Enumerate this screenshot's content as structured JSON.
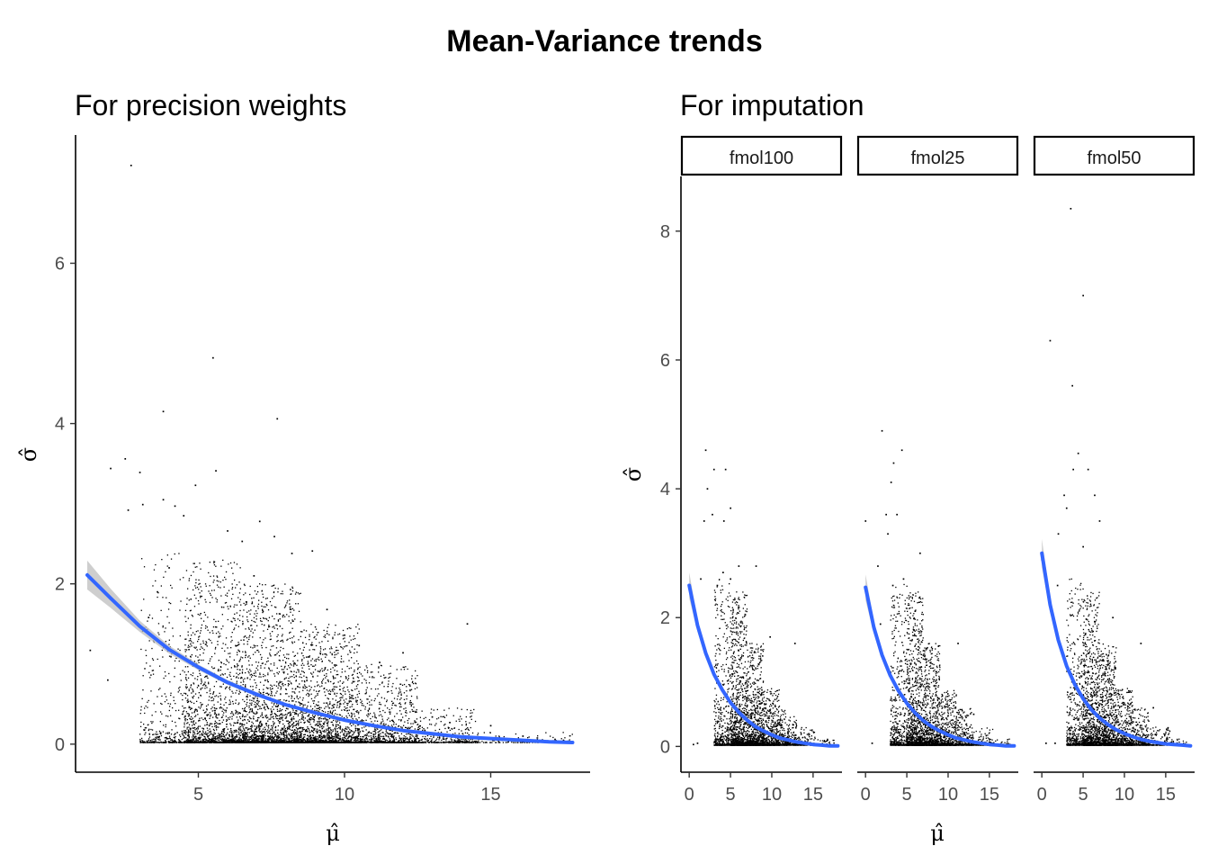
{
  "title": "Mean-Variance trends",
  "chart_data": [
    {
      "type": "scatter",
      "subtitle": "For precision weights",
      "xlabel": "μ̂",
      "ylabel": "σ̂",
      "xlim": [
        0.8,
        18.4
      ],
      "ylim": [
        -0.35,
        7.6
      ],
      "xticks": [
        5,
        10,
        15
      ],
      "yticks": [
        0,
        2,
        4,
        6
      ],
      "grid": false,
      "x_mode": 6.5,
      "x_spread": 1.8,
      "series": [
        {
          "color": "#000000",
          "points": [
            [
              2.7,
              7.22
            ],
            [
              5.5,
              4.82
            ],
            [
              3.8,
              4.15
            ],
            [
              7.7,
              4.06
            ],
            [
              1.3,
              1.17
            ],
            [
              1.9,
              0.8
            ],
            [
              2.0,
              3.44
            ],
            [
              2.5,
              3.56
            ],
            [
              2.6,
              2.92
            ],
            [
              3.0,
              3.39
            ],
            [
              3.1,
              2.99
            ],
            [
              3.8,
              3.05
            ],
            [
              4.2,
              2.97
            ],
            [
              4.9,
              3.23
            ],
            [
              5.6,
              3.41
            ],
            [
              4.5,
              2.85
            ],
            [
              6.0,
              2.66
            ],
            [
              6.5,
              2.53
            ],
            [
              7.1,
              2.78
            ],
            [
              7.6,
              2.59
            ],
            [
              8.2,
              2.38
            ],
            [
              8.9,
              2.41
            ],
            [
              14.2,
              1.5
            ],
            [
              12.0,
              1.14
            ],
            [
              10.5,
              1.23
            ],
            [
              11.2,
              1.02
            ],
            [
              13.0,
              0.34
            ],
            [
              13.6,
              0.27
            ],
            [
              15.0,
              0.23
            ],
            [
              16.1,
              0.1
            ],
            [
              17.2,
              0.06
            ],
            [
              3.3,
              1.58
            ],
            [
              3.6,
              1.9
            ],
            [
              4.0,
              2.2
            ],
            [
              6.9,
              2.1
            ],
            [
              9.4,
              1.68
            ],
            [
              10.0,
              1.36
            ]
          ]
        }
      ],
      "density": [
        {
          "x_from": 3.0,
          "x_to": 4.5,
          "count": 400,
          "y_max": 2.4
        },
        {
          "x_from": 4.5,
          "x_to": 6.5,
          "count": 1500,
          "y_max": 2.3
        },
        {
          "x_from": 6.5,
          "x_to": 8.5,
          "count": 2000,
          "y_max": 2.0
        },
        {
          "x_from": 8.5,
          "x_to": 10.5,
          "count": 1600,
          "y_max": 1.5
        },
        {
          "x_from": 10.5,
          "x_to": 12.5,
          "count": 900,
          "y_max": 1.0
        },
        {
          "x_from": 12.5,
          "x_to": 14.5,
          "count": 350,
          "y_max": 0.45
        },
        {
          "x_from": 14.5,
          "x_to": 17.8,
          "count": 120,
          "y_max": 0.15
        }
      ],
      "trend": {
        "color": "#3366ff",
        "band_color": "#bdbdbd",
        "x": [
          1.2,
          2.0,
          3.0,
          4.0,
          5.0,
          6.0,
          7.0,
          8.0,
          9.0,
          10.0,
          11.0,
          12.0,
          13.0,
          14.0,
          15.0,
          16.0,
          17.0,
          17.8
        ],
        "y": [
          2.11,
          1.82,
          1.47,
          1.18,
          0.96,
          0.77,
          0.62,
          0.49,
          0.39,
          0.3,
          0.23,
          0.17,
          0.13,
          0.09,
          0.07,
          0.05,
          0.03,
          0.02
        ],
        "se": [
          0.18,
          0.12,
          0.07,
          0.05,
          0.035,
          0.03,
          0.025,
          0.02,
          0.02,
          0.015,
          0.015,
          0.015,
          0.015,
          0.015,
          0.015,
          0.015,
          0.02,
          0.02
        ]
      }
    },
    {
      "type": "scatter",
      "subtitle": "For imputation",
      "xlabel": "μ̂",
      "ylabel": "σ̂",
      "xlim": [
        -1.0,
        18.5
      ],
      "ylim": [
        -0.4,
        8.85
      ],
      "xticks": [
        0,
        5,
        10,
        15
      ],
      "yticks": [
        0,
        2,
        4,
        6,
        8
      ],
      "grid": false,
      "facets": [
        {
          "label": "fmol100",
          "outliers": [
            [
              2.0,
              4.6
            ],
            [
              3.0,
              4.3
            ],
            [
              4.4,
              4.3
            ],
            [
              2.2,
              4.0
            ],
            [
              1.8,
              3.5
            ],
            [
              2.8,
              3.6
            ],
            [
              5.0,
              3.7
            ],
            [
              4.2,
              3.5
            ],
            [
              6.0,
              2.8
            ],
            [
              1.4,
              2.6
            ],
            [
              3.4,
              2.5
            ],
            [
              4.1,
              2.7
            ],
            [
              5.0,
              2.6
            ],
            [
              8.1,
              2.8
            ],
            [
              9.8,
              1.7
            ],
            [
              12.8,
              1.6
            ],
            [
              0.5,
              0.03
            ],
            [
              1.0,
              0.05
            ]
          ],
          "trend": {
            "x": [
              0,
              1,
              2,
              3,
              4,
              5,
              6,
              7,
              8,
              9,
              10,
              11,
              12,
              13,
              14,
              15,
              16,
              17,
              18
            ],
            "y": [
              2.5,
              1.88,
              1.45,
              1.12,
              0.88,
              0.68,
              0.53,
              0.41,
              0.31,
              0.24,
              0.18,
              0.13,
              0.1,
              0.07,
              0.05,
              0.03,
              0.02,
              0.01,
              0.01
            ],
            "se": [
              0.2,
              0.1,
              0.05,
              0.03,
              0.02,
              0.02,
              0.02,
              0.02,
              0.015,
              0.015,
              0.015,
              0.015,
              0.015,
              0.015,
              0.015,
              0.015,
              0.015,
              0.015,
              0.015
            ]
          }
        },
        {
          "label": "fmol25",
          "outliers": [
            [
              2.0,
              4.9
            ],
            [
              4.4,
              4.6
            ],
            [
              3.1,
              4.1
            ],
            [
              3.4,
              4.4
            ],
            [
              2.5,
              3.6
            ],
            [
              3.8,
              3.6
            ],
            [
              0.0,
              3.5
            ],
            [
              2.7,
              3.3
            ],
            [
              6.6,
              3.0
            ],
            [
              1.5,
              2.8
            ],
            [
              3.3,
              2.5
            ],
            [
              4.6,
              2.6
            ],
            [
              6.0,
              2.1
            ],
            [
              1.8,
              1.9
            ],
            [
              11.2,
              1.6
            ],
            [
              13.1,
              0.5
            ],
            [
              0.8,
              0.05
            ],
            [
              15.5,
              0.05
            ]
          ],
          "trend": {
            "x": [
              0,
              1,
              2,
              3,
              4,
              5,
              6,
              7,
              8,
              9,
              10,
              11,
              12,
              13,
              14,
              15,
              16,
              17,
              18
            ],
            "y": [
              2.47,
              1.85,
              1.42,
              1.1,
              0.86,
              0.67,
              0.52,
              0.4,
              0.31,
              0.24,
              0.18,
              0.13,
              0.1,
              0.07,
              0.05,
              0.03,
              0.02,
              0.01,
              0.01
            ],
            "se": [
              0.2,
              0.1,
              0.05,
              0.03,
              0.02,
              0.02,
              0.02,
              0.02,
              0.015,
              0.015,
              0.015,
              0.015,
              0.015,
              0.015,
              0.015,
              0.015,
              0.015,
              0.015,
              0.015
            ]
          }
        },
        {
          "label": "fmol50",
          "outliers": [
            [
              3.5,
              8.35
            ],
            [
              5.0,
              7.0
            ],
            [
              1.0,
              6.3
            ],
            [
              3.7,
              5.6
            ],
            [
              4.4,
              4.55
            ],
            [
              3.8,
              4.3
            ],
            [
              5.6,
              4.3
            ],
            [
              6.4,
              3.9
            ],
            [
              2.7,
              3.9
            ],
            [
              3.0,
              3.7
            ],
            [
              7.0,
              3.5
            ],
            [
              5.0,
              3.1
            ],
            [
              2.0,
              3.3
            ],
            [
              0.0,
              2.9
            ],
            [
              1.9,
              2.5
            ],
            [
              8.6,
              2.0
            ],
            [
              12.0,
              1.6
            ],
            [
              13.5,
              0.6
            ],
            [
              0.5,
              0.05
            ],
            [
              1.6,
              0.05
            ]
          ],
          "trend": {
            "x": [
              0,
              1,
              2,
              3,
              4,
              5,
              6,
              7,
              8,
              9,
              10,
              11,
              12,
              13,
              14,
              15,
              16,
              17,
              18
            ],
            "y": [
              3.0,
              2.2,
              1.65,
              1.25,
              0.96,
              0.74,
              0.57,
              0.44,
              0.34,
              0.26,
              0.2,
              0.15,
              0.11,
              0.08,
              0.06,
              0.04,
              0.03,
              0.02,
              0.01
            ],
            "se": [
              0.22,
              0.12,
              0.06,
              0.035,
              0.025,
              0.02,
              0.02,
              0.02,
              0.015,
              0.015,
              0.015,
              0.015,
              0.015,
              0.015,
              0.015,
              0.015,
              0.015,
              0.015,
              0.015
            ]
          }
        }
      ],
      "density": [
        {
          "x_from": 3.0,
          "x_to": 5.0,
          "count": 500,
          "y_max": 2.6
        },
        {
          "x_from": 5.0,
          "x_to": 7.0,
          "count": 1100,
          "y_max": 2.4
        },
        {
          "x_from": 7.0,
          "x_to": 9.0,
          "count": 900,
          "y_max": 1.6
        },
        {
          "x_from": 9.0,
          "x_to": 11.0,
          "count": 550,
          "y_max": 0.9
        },
        {
          "x_from": 11.0,
          "x_to": 13.0,
          "count": 300,
          "y_max": 0.6
        },
        {
          "x_from": 13.0,
          "x_to": 15.5,
          "count": 150,
          "y_max": 0.3
        },
        {
          "x_from": 15.5,
          "x_to": 17.6,
          "count": 50,
          "y_max": 0.12
        }
      ],
      "trend_color": "#3366ff",
      "band_color": "#bdbdbd"
    }
  ]
}
